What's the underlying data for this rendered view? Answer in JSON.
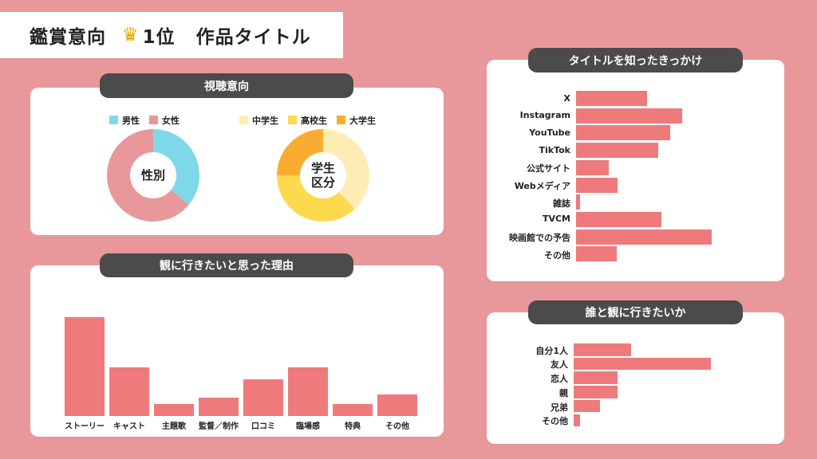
{
  "header": {
    "title": "鑑賞意向",
    "crown_icon": "crown-icon",
    "rank": "1位",
    "work_title": "作品タイトル"
  },
  "colors": {
    "background": "#e8989a",
    "bar": "#ee7a7c",
    "male": "#7fd8e8",
    "female": "#e8989a",
    "junior_high": "#fdedb5",
    "high_school": "#fdd94d",
    "university": "#f9ad30"
  },
  "viewing": {
    "title": "視聴意向"
  },
  "reasons_title": "観に行きたいと思った理由",
  "trigger_title": "タイトルを知ったきっかけ",
  "companion_title": "誰と観に行きたいか",
  "chart_data": [
    {
      "type": "pie",
      "donut": true,
      "center_label": "性別",
      "legend": [
        "男性",
        "女性"
      ],
      "values": [
        36,
        64
      ],
      "legend_placement": "top"
    },
    {
      "type": "pie",
      "donut": true,
      "center_label": "学生\n区分",
      "legend": [
        "中学生",
        "高校生",
        "大学生"
      ],
      "values": [
        38,
        37,
        25
      ],
      "legend_placement": "top"
    },
    {
      "type": "bar",
      "orientation": "vertical",
      "categories": [
        "ストーリー",
        "キャスト",
        "主題歌",
        "監督／制作",
        "口コミ",
        "臨場感",
        "特典",
        "その他"
      ],
      "values": [
        124,
        61,
        15,
        23,
        46,
        61,
        15,
        27
      ]
    },
    {
      "type": "bar",
      "orientation": "horizontal",
      "categories": [
        "X",
        "Instagram",
        "YouTube",
        "TikTok",
        "公式サイト",
        "Webメディア",
        "雑誌",
        "TVCM",
        "映画館での予告",
        "その他"
      ],
      "values": [
        89,
        133,
        118,
        103,
        41,
        52,
        5,
        107,
        170,
        51
      ]
    },
    {
      "type": "bar",
      "orientation": "horizontal",
      "categories": [
        "自分1人",
        "友人",
        "恋人",
        "親",
        "兄弟",
        "その他"
      ],
      "values": [
        72,
        172,
        55,
        55,
        33,
        8
      ]
    }
  ]
}
